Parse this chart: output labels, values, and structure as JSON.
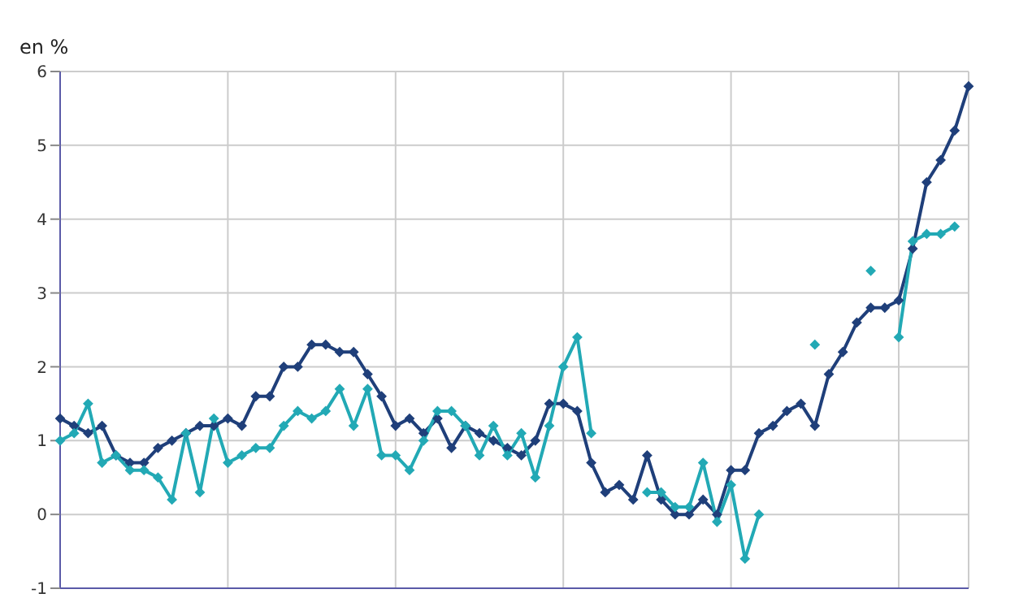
{
  "chart_data": {
    "type": "line",
    "ylabel": "en %",
    "categories": [
      null,
      null,
      null,
      null,
      null,
      null,
      null,
      null,
      null,
      null,
      null,
      null,
      null,
      null,
      null,
      null,
      null,
      null,
      null,
      null,
      null,
      null,
      null,
      null,
      null,
      null,
      null,
      null,
      null,
      null,
      null,
      null,
      null,
      null,
      null,
      null,
      null,
      null,
      null,
      null,
      null,
      null,
      null,
      null,
      null,
      null,
      null,
      null,
      null,
      null,
      null,
      null,
      null,
      null,
      null,
      null,
      null,
      null,
      null,
      null,
      null,
      null,
      null,
      null,
      null,
      null
    ],
    "series": [
      {
        "color": "#1f3f7a",
        "values": [
          1.3,
          1.2,
          1.1,
          1.2,
          0.8,
          0.7,
          0.7,
          0.9,
          1.0,
          1.1,
          1.2,
          1.2,
          1.3,
          1.2,
          1.6,
          1.6,
          2.0,
          2.0,
          2.3,
          2.3,
          2.2,
          2.2,
          1.9,
          1.6,
          1.2,
          1.3,
          1.1,
          1.3,
          0.9,
          1.2,
          1.1,
          1.0,
          0.9,
          0.8,
          1.0,
          1.5,
          1.5,
          1.4,
          0.7,
          0.3,
          0.4,
          0.2,
          0.8,
          0.2,
          0.0,
          0.0,
          0.2,
          0.0,
          0.6,
          0.6,
          1.1,
          1.2,
          1.4,
          1.5,
          1.2,
          1.9,
          2.2,
          2.6,
          2.8,
          2.8,
          2.9,
          3.6,
          4.5,
          4.8,
          5.2,
          5.8
        ]
      },
      {
        "color": "#22a9b5",
        "values": [
          1.0,
          1.1,
          1.5,
          0.7,
          0.8,
          0.6,
          0.6,
          0.5,
          0.2,
          1.1,
          0.3,
          1.3,
          0.7,
          0.8,
          0.9,
          0.9,
          1.2,
          1.4,
          1.3,
          1.4,
          1.7,
          1.2,
          1.7,
          0.8,
          0.8,
          0.6,
          1.0,
          1.4,
          1.4,
          1.2,
          0.8,
          1.2,
          0.8,
          1.1,
          0.5,
          1.2,
          2.0,
          2.4,
          1.1,
          null,
          null,
          null,
          0.3,
          0.3,
          0.1,
          0.1,
          0.7,
          -0.1,
          0.4,
          -0.6,
          0.0,
          null,
          null,
          null,
          2.3,
          null,
          null,
          null,
          3.3,
          null,
          2.4,
          3.7,
          3.8,
          3.8,
          3.9,
          null
        ]
      }
    ],
    "ylim": [
      -1,
      6
    ],
    "yticks": [
      -1,
      0,
      1,
      2,
      3,
      4,
      5,
      6
    ],
    "grid": true,
    "marker": "diamond",
    "line_style": "solid",
    "tick_labels": "y"
  }
}
